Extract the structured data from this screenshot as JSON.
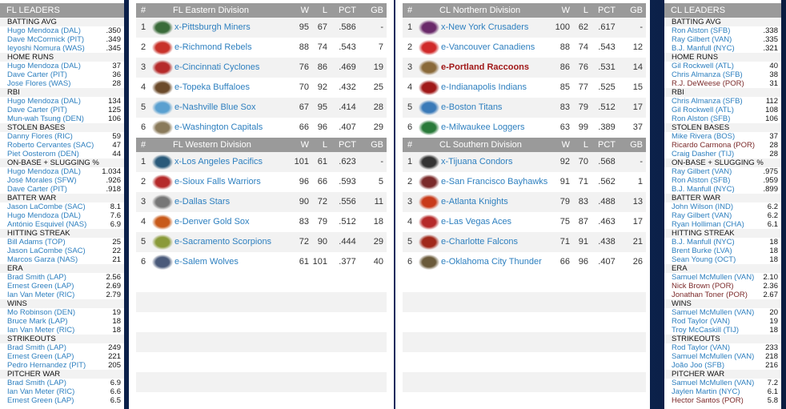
{
  "fl_leaders": {
    "title": "FL LEADERS",
    "categories": [
      {
        "label": "BATTING AVG",
        "rows": [
          [
            "Hugo Mendoza (DAL)",
            ".350",
            0
          ],
          [
            "Dave McCormick (PIT)",
            ".349",
            0
          ],
          [
            "Ieyoshi Nomura (WAS)",
            ".345",
            0
          ]
        ]
      },
      {
        "label": "HOME RUNS",
        "rows": [
          [
            "Hugo Mendoza (DAL)",
            "37",
            0
          ],
          [
            "Dave Carter (PIT)",
            "36",
            0
          ],
          [
            "Jose Flores (WAS)",
            "28",
            0
          ]
        ]
      },
      {
        "label": "RBI",
        "rows": [
          [
            "Hugo Mendoza (DAL)",
            "134",
            0
          ],
          [
            "Dave Carter (PIT)",
            "125",
            0
          ],
          [
            "Mun-wah Tsung (DEN)",
            "106",
            0
          ]
        ]
      },
      {
        "label": "STOLEN BASES",
        "rows": [
          [
            "Danny Flores (RIC)",
            "59",
            0
          ],
          [
            "Roberto Cervantes (SAC)",
            "47",
            0
          ],
          [
            "Piet Oosterom (DEN)",
            "44",
            0
          ]
        ]
      },
      {
        "label": "ON-BASE + SLUGGING %",
        "rows": [
          [
            "Hugo Mendoza (DAL)",
            "1.034",
            0
          ],
          [
            "José Morales (SFW)",
            ".926",
            0
          ],
          [
            "Dave Carter (PIT)",
            ".918",
            0
          ]
        ]
      },
      {
        "label": "BATTER WAR",
        "rows": [
          [
            "Jason LaCombe (SAC)",
            "8.1",
            0
          ],
          [
            "Hugo Mendoza (DAL)",
            "7.6",
            0
          ],
          [
            "António Esquivel (NAS)",
            "6.9",
            0
          ]
        ]
      },
      {
        "label": "HITTING STREAK",
        "rows": [
          [
            "Bill Adams (TOP)",
            "25",
            0
          ],
          [
            "Jason LaCombe (SAC)",
            "22",
            0
          ],
          [
            "Marcos Garza (NAS)",
            "21",
            0
          ]
        ]
      },
      {
        "label": "ERA",
        "rows": [
          [
            "Brad Smith (LAP)",
            "2.56",
            0
          ],
          [
            "Ernest Green (LAP)",
            "2.69",
            0
          ],
          [
            "Ian Van Meter (RIC)",
            "2.79",
            0
          ]
        ]
      },
      {
        "label": "WINS",
        "rows": [
          [
            "Mo Robinson (DEN)",
            "19",
            0
          ],
          [
            "Bruce Mark (LAP)",
            "18",
            0
          ],
          [
            "Ian Van Meter (RIC)",
            "18",
            0
          ]
        ]
      },
      {
        "label": "STRIKEOUTS",
        "rows": [
          [
            "Brad Smith (LAP)",
            "249",
            0
          ],
          [
            "Ernest Green (LAP)",
            "221",
            0
          ],
          [
            "Pedro Hernandez (PIT)",
            "205",
            0
          ]
        ]
      },
      {
        "label": "PITCHER WAR",
        "rows": [
          [
            "Brad Smith (LAP)",
            "6.9",
            0
          ],
          [
            "Ian Van Meter (RIC)",
            "6.6",
            0
          ],
          [
            "Ernest Green (LAP)",
            "6.5",
            0
          ]
        ]
      }
    ]
  },
  "cl_leaders": {
    "title": "CL LEADERS",
    "categories": [
      {
        "label": "BATTING AVG",
        "rows": [
          [
            "Ron Alston (SFB)",
            ".338",
            0
          ],
          [
            "Ray Gilbert (VAN)",
            ".335",
            0
          ],
          [
            "B.J. Manfull (NYC)",
            ".321",
            0
          ]
        ]
      },
      {
        "label": "HOME RUNS",
        "rows": [
          [
            "Gil Rockwell (ATL)",
            "40",
            0
          ],
          [
            "Chris Almanza (SFB)",
            "38",
            0
          ],
          [
            "R.J. DeWeese (POR)",
            "31",
            1
          ]
        ]
      },
      {
        "label": "RBI",
        "rows": [
          [
            "Chris Almanza (SFB)",
            "112",
            0
          ],
          [
            "Gil Rockwell (ATL)",
            "108",
            0
          ],
          [
            "Ron Alston (SFB)",
            "106",
            0
          ]
        ]
      },
      {
        "label": "STOLEN BASES",
        "rows": [
          [
            "Mike Rivera (BOS)",
            "37",
            0
          ],
          [
            "Ricardo Carmona (POR)",
            "28",
            1
          ],
          [
            "Craig Dasher (TIJ)",
            "28",
            0
          ]
        ]
      },
      {
        "label": "ON-BASE + SLUGGING %",
        "rows": [
          [
            "Ray Gilbert (VAN)",
            ".975",
            0
          ],
          [
            "Ron Alston (SFB)",
            ".959",
            0
          ],
          [
            "B.J. Manfull (NYC)",
            ".899",
            0
          ]
        ]
      },
      {
        "label": "BATTER WAR",
        "rows": [
          [
            "John Wilson (IND)",
            "6.2",
            0
          ],
          [
            "Ray Gilbert (VAN)",
            "6.2",
            0
          ],
          [
            "Ryan Holliman (CHA)",
            "6.1",
            0
          ]
        ]
      },
      {
        "label": "HITTING STREAK",
        "rows": [
          [
            "B.J. Manfull (NYC)",
            "18",
            0
          ],
          [
            "Brent Burke (LVA)",
            "18",
            0
          ],
          [
            "Sean Young (OCT)",
            "18",
            0
          ]
        ]
      },
      {
        "label": "ERA",
        "rows": [
          [
            "Samuel McMullen (VAN)",
            "2.10",
            0
          ],
          [
            "Nick Brown (POR)",
            "2.36",
            1
          ],
          [
            "Jonathan Toner (POR)",
            "2.67",
            1
          ]
        ]
      },
      {
        "label": "WINS",
        "rows": [
          [
            "Samuel McMullen (VAN)",
            "20",
            0
          ],
          [
            "Rod Taylor (VAN)",
            "19",
            0
          ],
          [
            "Troy McCaskill (TIJ)",
            "18",
            0
          ]
        ]
      },
      {
        "label": "STRIKEOUTS",
        "rows": [
          [
            "Rod Taylor (VAN)",
            "233",
            0
          ],
          [
            "Samuel McMullen (VAN)",
            "218",
            0
          ],
          [
            "João Joo (SFB)",
            "216",
            0
          ]
        ]
      },
      {
        "label": "PITCHER WAR",
        "rows": [
          [
            "Samuel McMullen (VAN)",
            "7.2",
            0
          ],
          [
            "Jaylen Martin (NYC)",
            "6.1",
            0
          ],
          [
            "Hector Santos (POR)",
            "5.8",
            1
          ]
        ]
      }
    ]
  },
  "columns": {
    "rank": "#",
    "w": "W",
    "l": "L",
    "pct": "PCT",
    "gb": "GB"
  },
  "divisions": [
    {
      "name": "FL Eastern Division",
      "teams": [
        [
          "1",
          "x-Pittsburgh Miners",
          "95",
          "67",
          ".586",
          "-",
          "#3a6b3a",
          0
        ],
        [
          "2",
          "e-Richmond Rebels",
          "88",
          "74",
          ".543",
          "7",
          "#c8322a",
          0
        ],
        [
          "3",
          "e-Cincinnati Cyclones",
          "76",
          "86",
          ".469",
          "19",
          "#b52a2a",
          0
        ],
        [
          "4",
          "e-Topeka Buffaloes",
          "70",
          "92",
          ".432",
          "25",
          "#6b4a2a",
          0
        ],
        [
          "5",
          "e-Nashville Blue Sox",
          "67",
          "95",
          ".414",
          "28",
          "#5aa0d0",
          0
        ],
        [
          "6",
          "e-Washington Capitals",
          "66",
          "96",
          ".407",
          "29",
          "#8a7a5a",
          0
        ]
      ]
    },
    {
      "name": "FL Western Division",
      "teams": [
        [
          "1",
          "x-Los Angeles Pacifics",
          "101",
          "61",
          ".623",
          "-",
          "#2a5a7a",
          0
        ],
        [
          "2",
          "e-Sioux Falls Warriors",
          "96",
          "66",
          ".593",
          "5",
          "#b52a2a",
          0
        ],
        [
          "3",
          "e-Dallas Stars",
          "90",
          "72",
          ".556",
          "11",
          "#777777",
          0
        ],
        [
          "4",
          "e-Denver Gold Sox",
          "83",
          "79",
          ".512",
          "18",
          "#c85a1a",
          0
        ],
        [
          "5",
          "e-Sacramento Scorpions",
          "72",
          "90",
          ".444",
          "29",
          "#8a9a3a",
          0
        ],
        [
          "6",
          "e-Salem Wolves",
          "61",
          "101",
          ".377",
          "40",
          "#4a5a7a",
          0
        ]
      ]
    },
    {
      "name": "CL Northern Division",
      "teams": [
        [
          "1",
          "x-New York Crusaders",
          "100",
          "62",
          ".617",
          "-",
          "#6a2a6a",
          0
        ],
        [
          "2",
          "e-Vancouver Canadiens",
          "88",
          "74",
          ".543",
          "12",
          "#d02a2a",
          0
        ],
        [
          "3",
          "e-Portland Raccoons",
          "86",
          "76",
          ".531",
          "14",
          "#8a6a3a",
          1
        ],
        [
          "4",
          "e-Indianapolis Indians",
          "85",
          "77",
          ".525",
          "15",
          "#a01818",
          0
        ],
        [
          "5",
          "e-Boston Titans",
          "83",
          "79",
          ".512",
          "17",
          "#3a7ab8",
          0
        ],
        [
          "6",
          "e-Milwaukee Loggers",
          "63",
          "99",
          ".389",
          "37",
          "#2a7a3a",
          0
        ]
      ]
    },
    {
      "name": "CL Southern Division",
      "teams": [
        [
          "1",
          "x-Tijuana Condors",
          "92",
          "70",
          ".568",
          "-",
          "#333333",
          0
        ],
        [
          "2",
          "e-San Francisco Bayhawks",
          "91",
          "71",
          ".562",
          "1",
          "#7a2a2a",
          0
        ],
        [
          "3",
          "e-Atlanta Knights",
          "79",
          "83",
          ".488",
          "13",
          "#c83a1a",
          0
        ],
        [
          "4",
          "e-Las Vegas Aces",
          "75",
          "87",
          ".463",
          "17",
          "#b52a2a",
          0
        ],
        [
          "5",
          "e-Charlotte Falcons",
          "71",
          "91",
          ".438",
          "21",
          "#a0281a",
          0
        ],
        [
          "6",
          "e-Oklahoma City Thunder",
          "66",
          "96",
          ".407",
          "26",
          "#6a5a3a",
          0
        ]
      ]
    }
  ]
}
